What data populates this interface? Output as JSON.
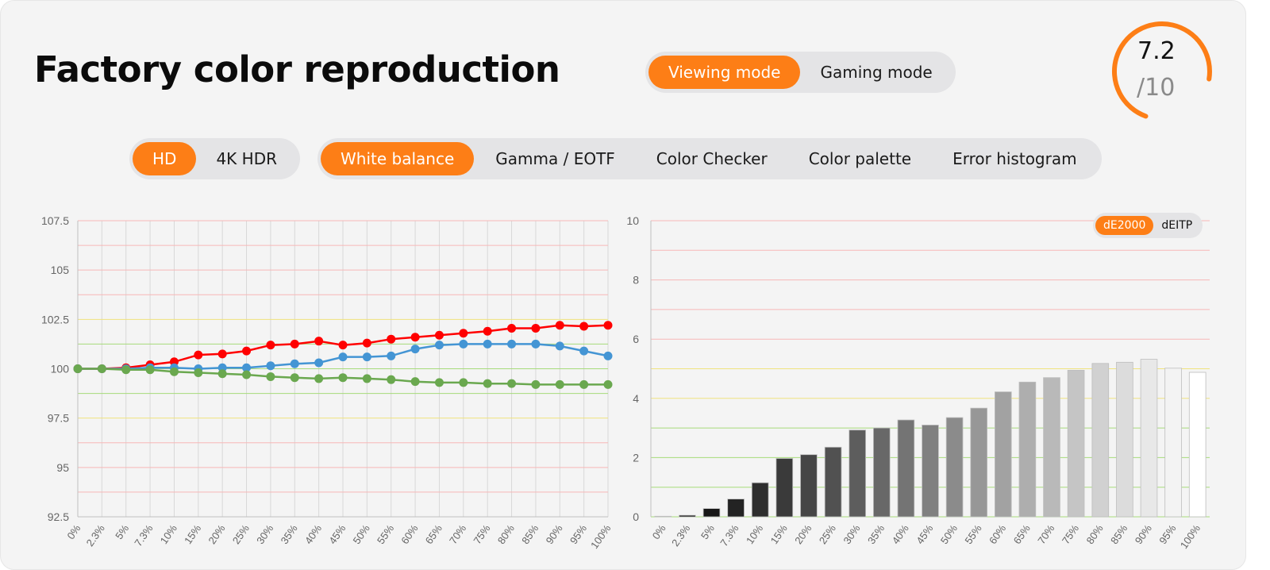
{
  "title": "Factory color reproduction",
  "mode_tabs": [
    {
      "label": "Viewing mode",
      "active": true
    },
    {
      "label": "Gaming mode",
      "active": false
    }
  ],
  "resolution_tabs": [
    {
      "label": "HD",
      "active": true
    },
    {
      "label": "4K HDR",
      "active": false
    }
  ],
  "view_tabs": [
    {
      "label": "White balance",
      "active": true
    },
    {
      "label": "Gamma / EOTF",
      "active": false
    },
    {
      "label": "Color Checker",
      "active": false
    },
    {
      "label": "Color palette",
      "active": false
    },
    {
      "label": "Error histogram",
      "active": false
    }
  ],
  "score": {
    "value": "7.2",
    "max": "/10",
    "fraction": 0.72
  },
  "metric_tabs": [
    {
      "label": "dE2000",
      "active": true
    },
    {
      "label": "dEITP",
      "active": false
    }
  ],
  "colors": {
    "accent": "#fd7e16",
    "red": "#ff0000",
    "blue": "#4495d4",
    "green": "#6aa84f"
  },
  "chart_data": [
    {
      "type": "line",
      "categories": [
        "0%",
        "2.3%",
        "5%",
        "7.3%",
        "10%",
        "15%",
        "20%",
        "25%",
        "30%",
        "35%",
        "40%",
        "45%",
        "50%",
        "55%",
        "60%",
        "65%",
        "70%",
        "75%",
        "80%",
        "85%",
        "90%",
        "95%",
        "100%"
      ],
      "ylim": [
        92.5,
        107.5
      ],
      "yticks": [
        "92.5",
        "95",
        "97.5",
        "100",
        "102.5",
        "105",
        "107.5"
      ],
      "grid": true,
      "series": [
        {
          "color": "#ff0000",
          "values": [
            100,
            100,
            100.05,
            100.2,
            100.35,
            100.7,
            100.75,
            100.9,
            101.2,
            101.25,
            101.4,
            101.2,
            101.3,
            101.5,
            101.6,
            101.7,
            101.8,
            101.9,
            102.05,
            102.05,
            102.2,
            102.15,
            102.2
          ]
        },
        {
          "color": "#4495d4",
          "values": [
            100,
            100,
            100.0,
            100.05,
            100.05,
            100.0,
            100.05,
            100.05,
            100.15,
            100.25,
            100.3,
            100.6,
            100.6,
            100.65,
            101.0,
            101.2,
            101.25,
            101.25,
            101.25,
            101.25,
            101.15,
            100.9,
            100.65
          ]
        },
        {
          "color": "#6aa84f",
          "values": [
            100,
            100,
            99.95,
            99.95,
            99.85,
            99.8,
            99.75,
            99.7,
            99.6,
            99.55,
            99.5,
            99.55,
            99.5,
            99.45,
            99.35,
            99.3,
            99.3,
            99.25,
            99.25,
            99.2,
            99.2,
            99.2,
            99.2
          ]
        }
      ]
    },
    {
      "type": "bar",
      "categories": [
        "0%",
        "2.3%",
        "5%",
        "7.3%",
        "10%",
        "15%",
        "20%",
        "25%",
        "30%",
        "35%",
        "40%",
        "45%",
        "50%",
        "55%",
        "60%",
        "65%",
        "70%",
        "75%",
        "80%",
        "85%",
        "90%",
        "95%",
        "100%"
      ],
      "values": [
        0.02,
        0.05,
        0.28,
        0.6,
        1.15,
        1.97,
        2.1,
        2.35,
        2.93,
        3.0,
        3.27,
        3.1,
        3.35,
        3.67,
        4.22,
        4.55,
        4.7,
        4.95,
        5.18,
        5.22,
        5.32,
        5.02,
        4.88
      ],
      "ylim": [
        0,
        10
      ],
      "yticks": [
        "0",
        "2",
        "4",
        "6",
        "8",
        "10"
      ],
      "grid": true
    }
  ]
}
